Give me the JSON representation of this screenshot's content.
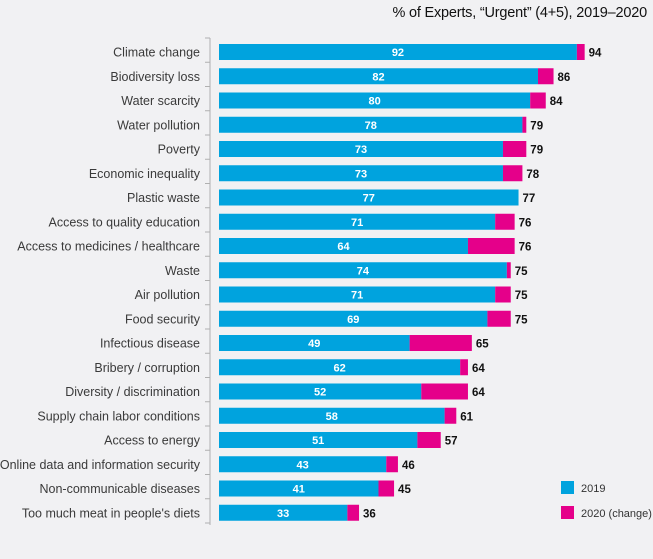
{
  "chart_data": {
    "type": "bar",
    "orientation": "horizontal",
    "stacked": true,
    "title": "% of Experts, “Urgent” (4+5), 2019–2020",
    "xlabel": "",
    "ylabel": "",
    "xlim": [
      0,
      100
    ],
    "grid": false,
    "legend_position": "bottom-right",
    "categories": [
      "Climate change",
      "Biodiversity loss",
      "Water scarcity",
      "Water pollution",
      "Poverty",
      "Economic inequality",
      "Plastic waste",
      "Access to quality education",
      "Access to medicines / healthcare",
      "Waste",
      "Air pollution",
      "Food security",
      "Infectious disease",
      "Bribery / corruption",
      "Diversity / discrimination",
      "Supply chain labor conditions",
      "Access to energy",
      "Online data and information security",
      "Non-communicable diseases",
      "Too much meat in people's diets"
    ],
    "series": [
      {
        "name": "2019",
        "color": "#00a3de",
        "values": [
          92,
          82,
          80,
          78,
          73,
          73,
          77,
          71,
          64,
          74,
          71,
          69,
          49,
          62,
          52,
          58,
          51,
          43,
          41,
          33
        ]
      },
      {
        "name": "2020 (change)",
        "color": "#e5008a",
        "values": [
          2,
          4,
          4,
          1,
          6,
          5,
          0,
          5,
          12,
          1,
          4,
          6,
          16,
          2,
          12,
          3,
          6,
          3,
          4,
          3
        ]
      }
    ],
    "totals_2020": [
      94,
      86,
      84,
      79,
      79,
      78,
      77,
      76,
      76,
      75,
      75,
      75,
      65,
      64,
      64,
      61,
      57,
      46,
      45,
      36
    ],
    "legend": [
      {
        "label": "2019",
        "color": "#00a3de"
      },
      {
        "label": "2020 (change)",
        "color": "#e5008a"
      }
    ]
  }
}
